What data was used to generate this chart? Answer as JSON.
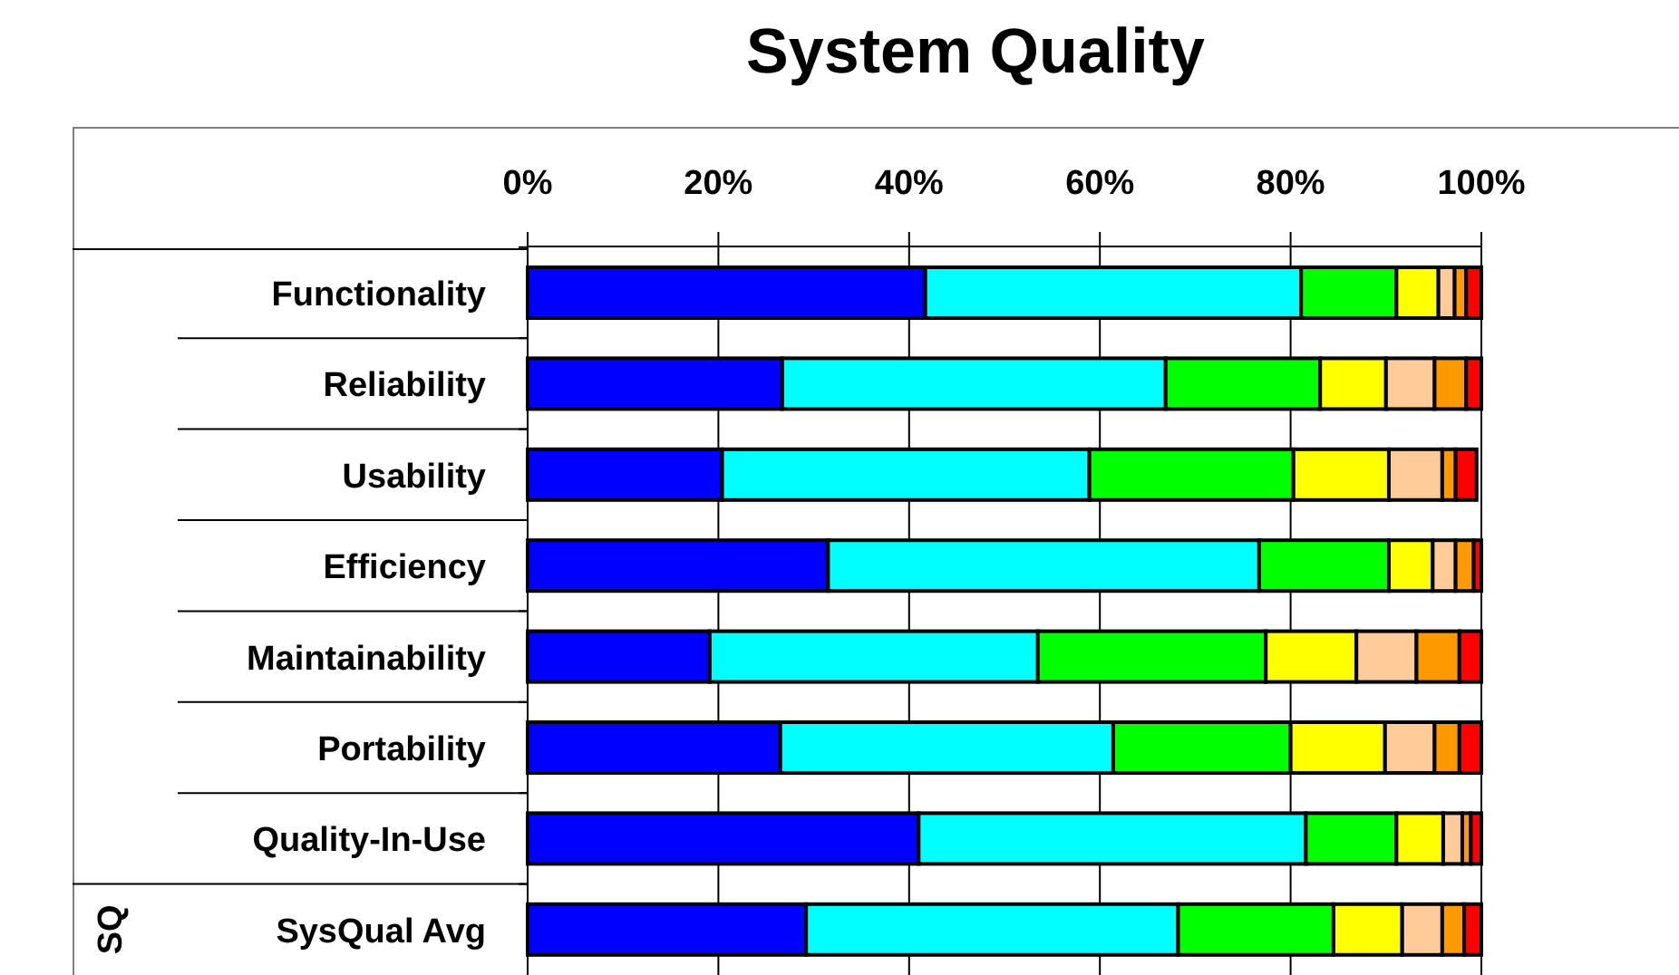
{
  "chart_data": {
    "type": "bar",
    "title": "System Quality",
    "orientation": "horizontal",
    "stacked": true,
    "grid": "x",
    "categories": [
      "Functionality",
      "Reliability",
      "Usability",
      "Efficiency",
      "Maintainability",
      "Portability",
      "Quality-In-Use",
      "SysQual Avg"
    ],
    "annotations": [
      "SQ"
    ],
    "xlim": [
      0,
      100
    ],
    "xticks": [
      {
        "value": 0,
        "label": "0%"
      },
      {
        "value": 20,
        "label": "20%"
      },
      {
        "value": 40,
        "label": "40%"
      },
      {
        "value": 60,
        "label": "60%"
      },
      {
        "value": 80,
        "label": "80%"
      },
      {
        "value": 100,
        "label": "100%"
      }
    ],
    "series": [
      {
        "color": "#0000ff",
        "values": [
          41.7,
          26.7,
          20.4,
          31.5,
          19.1,
          26.5,
          41.0,
          29.2
        ]
      },
      {
        "color": "#00ffff",
        "values": [
          39.4,
          40.2,
          38.5,
          45.2,
          34.4,
          34.9,
          40.6,
          39.0
        ]
      },
      {
        "color": "#00ff00",
        "values": [
          10.0,
          16.2,
          21.4,
          13.6,
          23.9,
          18.6,
          9.5,
          16.3
        ]
      },
      {
        "color": "#ffff00",
        "values": [
          4.4,
          6.9,
          10.0,
          4.6,
          9.5,
          9.9,
          4.9,
          7.2
        ]
      },
      {
        "color": "#ffcc99",
        "values": [
          1.7,
          5.1,
          5.6,
          2.4,
          6.3,
          5.2,
          2.0,
          4.2
        ]
      },
      {
        "color": "#ff9900",
        "values": [
          1.2,
          3.3,
          1.4,
          1.9,
          4.5,
          2.6,
          0.9,
          2.3
        ]
      },
      {
        "color": "#ff0000",
        "values": [
          1.6,
          1.6,
          2.2,
          0.8,
          2.3,
          2.3,
          1.1,
          1.8
        ]
      }
    ]
  }
}
